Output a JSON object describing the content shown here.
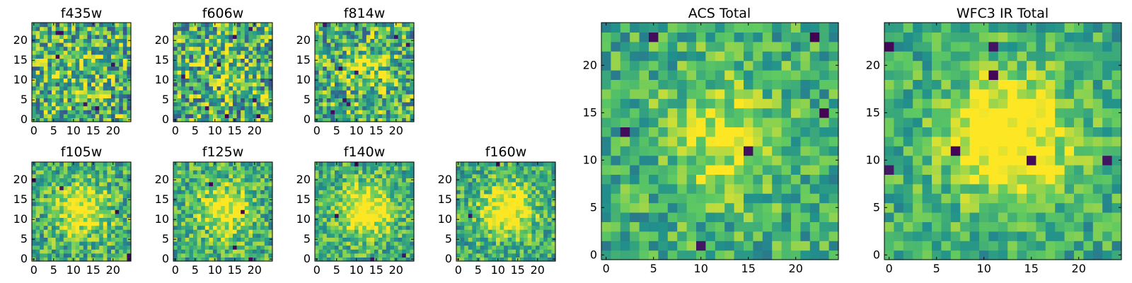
{
  "figure": {
    "background": "#ffffff",
    "colormap": "viridis",
    "colormap_colors": [
      "#440154",
      "#3b528b",
      "#21918c",
      "#5ec962",
      "#fde725"
    ]
  },
  "chart_data": [
    {
      "type": "heatmap",
      "title": "f435w",
      "grid_size": 25,
      "blob_strength": 0.15,
      "noise_strength": 0.85,
      "min_pixels": 6,
      "x_ticks": [
        "0",
        "5",
        "10",
        "15",
        "20"
      ],
      "y_ticks": [
        "0",
        "5",
        "10",
        "15",
        "20"
      ],
      "xlim": [
        0,
        25
      ],
      "ylim": [
        0,
        25
      ]
    },
    {
      "type": "heatmap",
      "title": "f606w",
      "grid_size": 25,
      "blob_strength": 0.1,
      "noise_strength": 0.9,
      "min_pixels": 8,
      "x_ticks": [
        "0",
        "5",
        "10",
        "15",
        "20"
      ],
      "y_ticks": [
        "0",
        "5",
        "10",
        "15",
        "20"
      ],
      "xlim": [
        0,
        25
      ],
      "ylim": [
        0,
        25
      ]
    },
    {
      "type": "heatmap",
      "title": "f814w",
      "grid_size": 25,
      "blob_strength": 0.2,
      "noise_strength": 0.8,
      "min_pixels": 8,
      "x_ticks": [
        "0",
        "5",
        "10",
        "15",
        "20"
      ],
      "y_ticks": [
        "0",
        "5",
        "10",
        "15",
        "20"
      ],
      "xlim": [
        0,
        25
      ],
      "ylim": [
        0,
        25
      ]
    },
    {
      "type": "heatmap",
      "title": "f105w",
      "grid_size": 25,
      "blob_strength": 0.45,
      "noise_strength": 0.6,
      "min_pixels": 5,
      "x_ticks": [
        "0",
        "5",
        "10",
        "15",
        "20"
      ],
      "y_ticks": [
        "0",
        "5",
        "10",
        "15",
        "20"
      ],
      "xlim": [
        0,
        25
      ],
      "ylim": [
        0,
        25
      ]
    },
    {
      "type": "heatmap",
      "title": "f125w",
      "grid_size": 25,
      "blob_strength": 0.45,
      "noise_strength": 0.6,
      "min_pixels": 4,
      "x_ticks": [
        "0",
        "5",
        "10",
        "15",
        "20"
      ],
      "y_ticks": [
        "0",
        "5",
        "10",
        "15",
        "20"
      ],
      "xlim": [
        0,
        25
      ],
      "ylim": [
        0,
        25
      ]
    },
    {
      "type": "heatmap",
      "title": "f140w",
      "grid_size": 25,
      "blob_strength": 0.5,
      "noise_strength": 0.55,
      "min_pixels": 4,
      "x_ticks": [
        "0",
        "5",
        "10",
        "15",
        "20"
      ],
      "y_ticks": [
        "0",
        "5",
        "10",
        "15",
        "20"
      ],
      "xlim": [
        0,
        25
      ],
      "ylim": [
        0,
        25
      ]
    },
    {
      "type": "heatmap",
      "title": "f160w",
      "grid_size": 25,
      "blob_strength": 0.5,
      "noise_strength": 0.55,
      "min_pixels": 2,
      "x_ticks": [
        "0",
        "5",
        "10",
        "15",
        "20"
      ],
      "y_ticks": [
        "0",
        "5",
        "10",
        "15",
        "20"
      ],
      "xlim": [
        0,
        25
      ],
      "ylim": [
        0,
        25
      ]
    },
    {
      "type": "heatmap",
      "title": "ACS Total",
      "grid_size": 25,
      "blob_strength": 0.3,
      "noise_strength": 0.5,
      "min_pixels": 6,
      "x_ticks": [
        "0",
        "5",
        "10",
        "15",
        "20"
      ],
      "y_ticks": [
        "0",
        "5",
        "10",
        "15",
        "20"
      ],
      "xlim": [
        0,
        25
      ],
      "ylim": [
        0,
        25
      ]
    },
    {
      "type": "heatmap",
      "title": "WFC3 IR Total",
      "grid_size": 25,
      "blob_strength": 0.55,
      "noise_strength": 0.45,
      "min_pixels": 7,
      "x_ticks": [
        "0",
        "5",
        "10",
        "15",
        "20"
      ],
      "y_ticks": [
        "0",
        "5",
        "10",
        "15",
        "20"
      ],
      "xlim": [
        0,
        25
      ],
      "ylim": [
        0,
        25
      ]
    }
  ]
}
